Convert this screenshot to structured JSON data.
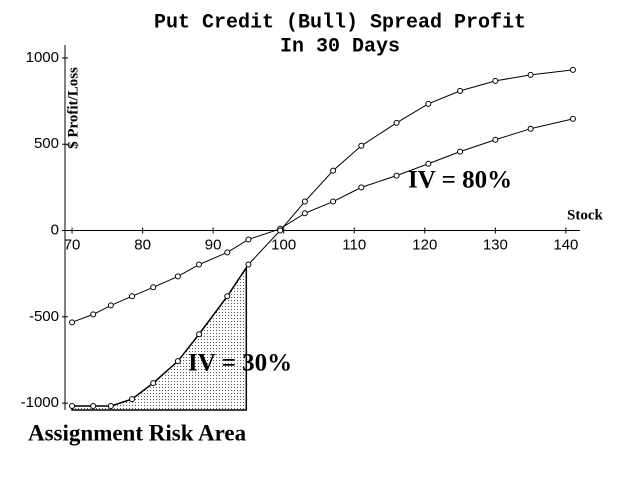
{
  "chart_data": {
    "type": "line",
    "title": "Put Credit (Bull) Spread Profit",
    "subtitle": "In 30 Days",
    "x_label": "Stock",
    "y_label": "$ Profit/Loss",
    "x": [
      70,
      73,
      75.5,
      78.5,
      81.5,
      85,
      88,
      92,
      95,
      99.5,
      103,
      107,
      111,
      116,
      120.5,
      125,
      130,
      135,
      141
    ],
    "series": [
      {
        "name": "IV = 80%",
        "color": "#000000",
        "values": [
          -532,
          -486,
          -434,
          -381,
          -329,
          -266,
          -197,
          -127,
          -52,
          10,
          100,
          168,
          250,
          318,
          387,
          457,
          526,
          590,
          647
        ]
      },
      {
        "name": "IV = 30%",
        "color": "#000000",
        "values": [
          -1017,
          -1017,
          -1017,
          -977,
          -884,
          -757,
          -601,
          -381,
          -197,
          0,
          168,
          347,
          491,
          624,
          734,
          809,
          867,
          902,
          931
        ]
      }
    ],
    "shaded_region": {
      "label": "Assignment Risk Area",
      "series": 1,
      "xlim": [
        70,
        94.7
      ]
    },
    "xlim": [
      69,
      142
    ],
    "ylim": [
      -1040,
      1075
    ],
    "xticks": [
      70,
      80,
      90,
      100,
      110,
      120,
      130,
      140
    ],
    "yticks": [
      -1000,
      -500,
      0,
      500,
      1000
    ]
  }
}
